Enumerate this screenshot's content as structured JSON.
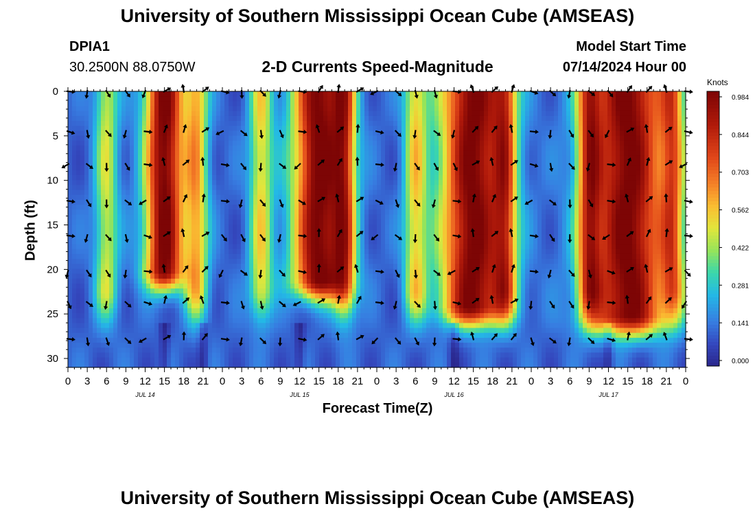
{
  "title": "University of Southern Mississippi Ocean Cube (AMSEAS)",
  "footer_title": "University of Southern Mississippi Ocean Cube (AMSEAS)",
  "station": {
    "id": "DPIA1",
    "coords": "30.2500N  88.0750W"
  },
  "plot_title": "2-D Currents Speed-Magnitude",
  "model": {
    "label": "Model Start Time",
    "value": "07/14/2024 Hour 00"
  },
  "chart_data": {
    "type": "heatmap",
    "xlabel": "Forecast Time(Z)",
    "ylabel": "Depth (ft)",
    "x_range": [
      0,
      96
    ],
    "y_range": [
      0,
      31
    ],
    "x_tick_labels": [
      "0",
      "3",
      "6",
      "9",
      "12",
      "15",
      "18",
      "21",
      "0",
      "3",
      "6",
      "9",
      "12",
      "15",
      "18",
      "21",
      "0",
      "3",
      "6",
      "9",
      "12",
      "15",
      "18",
      "21",
      "0",
      "3",
      "6",
      "9",
      "12",
      "15",
      "18",
      "21",
      "0"
    ],
    "y_ticks": [
      0,
      5,
      10,
      15,
      20,
      25,
      30
    ],
    "day_labels": [
      {
        "label": "JUL 14",
        "hour": 12
      },
      {
        "label": "JUL 15",
        "hour": 36
      },
      {
        "label": "JUL 16",
        "hour": 60
      },
      {
        "label": "JUL 17",
        "hour": 84
      }
    ],
    "colorbar": {
      "unit": "Knots",
      "min": 0.0,
      "max": 0.984,
      "tick_labels": [
        "0.984",
        "0.844",
        "0.703",
        "0.562",
        "0.422",
        "0.281",
        "0.141",
        "0.000"
      ]
    },
    "speed_peaks": [
      {
        "center_hour": 15,
        "width_hours": 3.0,
        "depth_to_ft": 20,
        "peak_knots": 0.98
      },
      {
        "center_hour": 39,
        "width_hours": 4.0,
        "depth_to_ft": 21,
        "peak_knots": 0.98
      },
      {
        "center_hour": 63,
        "width_hours": 5.0,
        "depth_to_ft": 24,
        "peak_knots": 0.98
      },
      {
        "center_hour": 87,
        "width_hours": 6.0,
        "depth_to_ft": 25,
        "peak_knots": 0.98
      }
    ],
    "vector_depths_ft": [
      0,
      4.5,
      8.2,
      12.3,
      16.2,
      20.2,
      23.7,
      27.8
    ],
    "vector_interval_hours": 3
  }
}
